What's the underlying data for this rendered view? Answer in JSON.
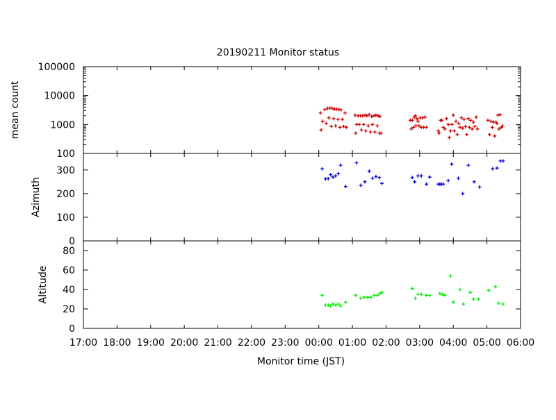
{
  "title": "20190211 Monitor status",
  "xlabel": "Monitor time (JST)",
  "x_ticks": [
    "17:00",
    "18:00",
    "19:00",
    "20:00",
    "21:00",
    "22:00",
    "23:00",
    "00:00",
    "01:00",
    "02:00",
    "03:00",
    "04:00",
    "05:00",
    "06:00"
  ],
  "chart_data": [
    {
      "type": "scatter",
      "ylabel": "mean count",
      "yscale": "log",
      "ylim": [
        100,
        100000
      ],
      "y_ticks": [
        "100",
        "1000",
        "10000",
        "100000"
      ],
      "color": "#cc0000",
      "x_unit": "hours after 17:00 JST",
      "xlim": [
        0,
        13
      ],
      "points": [
        [
          7.05,
          2500
        ],
        [
          7.07,
          650
        ],
        [
          7.12,
          1300
        ],
        [
          7.18,
          3300
        ],
        [
          7.22,
          1100
        ],
        [
          7.26,
          3600
        ],
        [
          7.3,
          1700
        ],
        [
          7.33,
          3700
        ],
        [
          7.37,
          850
        ],
        [
          7.4,
          3600
        ],
        [
          7.44,
          1600
        ],
        [
          7.47,
          3400
        ],
        [
          7.5,
          900
        ],
        [
          7.53,
          3400
        ],
        [
          7.57,
          1500
        ],
        [
          7.6,
          3300
        ],
        [
          7.63,
          800
        ],
        [
          7.66,
          3200
        ],
        [
          7.7,
          1500
        ],
        [
          7.74,
          850
        ],
        [
          7.78,
          2500
        ],
        [
          7.82,
          800
        ],
        [
          8.08,
          2100
        ],
        [
          8.1,
          500
        ],
        [
          8.13,
          1000
        ],
        [
          8.17,
          2000
        ],
        [
          8.2,
          1000
        ],
        [
          8.24,
          2000
        ],
        [
          8.27,
          650
        ],
        [
          8.3,
          2000
        ],
        [
          8.34,
          1000
        ],
        [
          8.37,
          2100
        ],
        [
          8.4,
          600
        ],
        [
          8.43,
          2000
        ],
        [
          8.47,
          900
        ],
        [
          8.5,
          2200
        ],
        [
          8.54,
          550
        ],
        [
          8.57,
          1900
        ],
        [
          8.6,
          1000
        ],
        [
          8.64,
          2000
        ],
        [
          8.67,
          550
        ],
        [
          8.7,
          2100
        ],
        [
          8.74,
          900
        ],
        [
          8.77,
          2000
        ],
        [
          8.8,
          500
        ],
        [
          8.82,
          1900
        ],
        [
          8.85,
          500
        ],
        [
          9.72,
          1400
        ],
        [
          9.75,
          700
        ],
        [
          9.78,
          1400
        ],
        [
          9.81,
          800
        ],
        [
          9.84,
          1800
        ],
        [
          9.87,
          2000
        ],
        [
          9.89,
          900
        ],
        [
          9.92,
          1600
        ],
        [
          9.95,
          1300
        ],
        [
          9.98,
          900
        ],
        [
          10.02,
          1700
        ],
        [
          10.05,
          800
        ],
        [
          10.09,
          1700
        ],
        [
          10.12,
          800
        ],
        [
          10.16,
          1800
        ],
        [
          10.2,
          800
        ],
        [
          10.55,
          600
        ],
        [
          10.58,
          500
        ],
        [
          10.62,
          1400
        ],
        [
          10.66,
          1400
        ],
        [
          10.7,
          800
        ],
        [
          10.75,
          700
        ],
        [
          10.8,
          1600
        ],
        [
          10.85,
          1000
        ],
        [
          10.88,
          350
        ],
        [
          10.92,
          600
        ],
        [
          10.96,
          1000
        ],
        [
          11.0,
          2100
        ],
        [
          11.03,
          600
        ],
        [
          11.08,
          1300
        ],
        [
          11.12,
          450
        ],
        [
          11.16,
          1100
        ],
        [
          11.2,
          800
        ],
        [
          11.24,
          1700
        ],
        [
          11.28,
          750
        ],
        [
          11.32,
          1500
        ],
        [
          11.36,
          850
        ],
        [
          11.4,
          450
        ],
        [
          11.44,
          1600
        ],
        [
          11.48,
          800
        ],
        [
          11.52,
          1400
        ],
        [
          11.56,
          700
        ],
        [
          11.6,
          1200
        ],
        [
          11.64,
          850
        ],
        [
          11.68,
          1800
        ],
        [
          11.72,
          700
        ],
        [
          12.03,
          1400
        ],
        [
          12.08,
          450
        ],
        [
          12.12,
          1300
        ],
        [
          12.16,
          800
        ],
        [
          12.2,
          1200
        ],
        [
          12.23,
          400
        ],
        [
          12.27,
          1200
        ],
        [
          12.3,
          1100
        ],
        [
          12.33,
          2100
        ],
        [
          12.36,
          700
        ],
        [
          12.39,
          2200
        ],
        [
          12.43,
          800
        ],
        [
          12.47,
          900
        ]
      ]
    },
    {
      "type": "scatter",
      "ylabel": "Azimuth",
      "ylim": [
        0,
        370
      ],
      "y_ticks": [
        "0",
        "100",
        "200",
        "300"
      ],
      "color": "#0000cc",
      "x_unit": "hours after 17:00 JST",
      "xlim": [
        0,
        13
      ],
      "points": [
        [
          7.1,
          305
        ],
        [
          7.2,
          262
        ],
        [
          7.28,
          263
        ],
        [
          7.35,
          280
        ],
        [
          7.42,
          270
        ],
        [
          7.5,
          275
        ],
        [
          7.58,
          285
        ],
        [
          7.65,
          320
        ],
        [
          7.8,
          230
        ],
        [
          8.12,
          330
        ],
        [
          8.25,
          235
        ],
        [
          8.37,
          250
        ],
        [
          8.5,
          295
        ],
        [
          8.6,
          265
        ],
        [
          8.7,
          272
        ],
        [
          8.8,
          268
        ],
        [
          8.88,
          243
        ],
        [
          9.78,
          268
        ],
        [
          9.85,
          250
        ],
        [
          9.95,
          275
        ],
        [
          10.05,
          275
        ],
        [
          10.2,
          240
        ],
        [
          10.3,
          270
        ],
        [
          10.55,
          240
        ],
        [
          10.6,
          240
        ],
        [
          10.65,
          240
        ],
        [
          10.7,
          240
        ],
        [
          10.85,
          255
        ],
        [
          10.95,
          325
        ],
        [
          11.15,
          265
        ],
        [
          11.28,
          200
        ],
        [
          11.45,
          320
        ],
        [
          11.62,
          250
        ],
        [
          11.78,
          228
        ],
        [
          12.17,
          305
        ],
        [
          12.3,
          308
        ],
        [
          12.4,
          338
        ],
        [
          12.48,
          338
        ]
      ]
    },
    {
      "type": "scatter",
      "ylabel": "Altitude",
      "ylim": [
        0,
        90
      ],
      "y_ticks": [
        "0",
        "20",
        "40",
        "60",
        "80"
      ],
      "color": "#00ee00",
      "x_unit": "hours after 17:00 JST",
      "xlim": [
        0,
        13
      ],
      "points": [
        [
          7.1,
          34
        ],
        [
          7.2,
          24
        ],
        [
          7.28,
          24
        ],
        [
          7.35,
          23
        ],
        [
          7.42,
          25
        ],
        [
          7.5,
          24
        ],
        [
          7.58,
          25
        ],
        [
          7.65,
          23
        ],
        [
          7.8,
          27
        ],
        [
          8.1,
          34
        ],
        [
          8.25,
          31
        ],
        [
          8.35,
          32
        ],
        [
          8.45,
          32
        ],
        [
          8.55,
          32
        ],
        [
          8.65,
          34
        ],
        [
          8.75,
          34
        ],
        [
          8.82,
          36
        ],
        [
          8.88,
          37
        ],
        [
          9.78,
          41
        ],
        [
          9.87,
          31
        ],
        [
          9.95,
          35
        ],
        [
          10.05,
          35
        ],
        [
          10.2,
          34
        ],
        [
          10.3,
          34
        ],
        [
          10.6,
          36
        ],
        [
          10.68,
          35
        ],
        [
          10.75,
          34
        ],
        [
          10.92,
          54
        ],
        [
          11.0,
          27
        ],
        [
          11.2,
          40
        ],
        [
          11.3,
          25
        ],
        [
          11.5,
          37
        ],
        [
          11.6,
          30
        ],
        [
          11.75,
          30
        ],
        [
          12.05,
          39
        ],
        [
          12.25,
          43
        ],
        [
          12.35,
          26
        ],
        [
          12.48,
          25
        ]
      ]
    }
  ]
}
